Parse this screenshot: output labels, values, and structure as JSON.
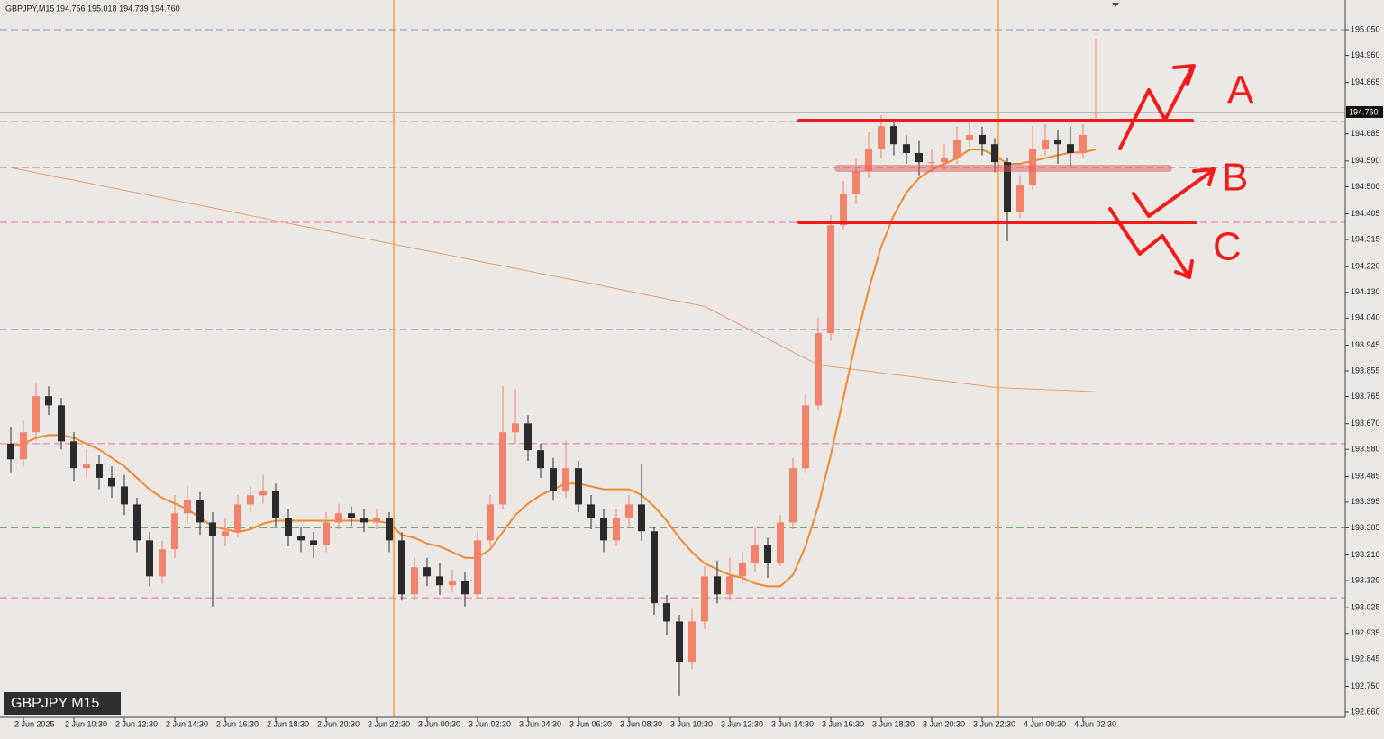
{
  "chart_data": {
    "type": "candlestick",
    "title": "GBPJPY,M15",
    "ohlc_text": "194.756 195.018 194.739 194.760",
    "watermark": "GBPJPY M15",
    "annotations": [
      "A",
      "B",
      "C"
    ],
    "up_color": "#f2836b",
    "down_color": "#2b2b2b",
    "categories": [
      null,
      "2 Jun 2025",
      null,
      null,
      null,
      "2 Jun 10:30",
      null,
      null,
      null,
      "2 Jun 12:30",
      null,
      null,
      null,
      "2 Jun 14:30",
      null,
      null,
      null,
      "2 Jun 16:30",
      null,
      null,
      null,
      "2 Jun 18:30",
      null,
      null,
      null,
      "2 Jun 20:30",
      null,
      null,
      null,
      "2 Jun 22:30",
      null,
      null,
      null,
      "3 Jun 00:30",
      null,
      null,
      null,
      "3 Jun 02:30",
      null,
      null,
      null,
      "3 Jun 04:30",
      null,
      null,
      null,
      "3 Jun 06:30",
      null,
      null,
      null,
      "3 Jun 08:30",
      null,
      null,
      null,
      "3 Jun 10:30",
      null,
      null,
      null,
      "3 Jun 12:30",
      null,
      null,
      null,
      "3 Jun 14:30",
      null,
      null,
      null,
      "3 Jun 16:30",
      null,
      null,
      null,
      "3 Jun 18:30",
      null,
      null,
      null,
      "3 Jun 20:30",
      null,
      null,
      null,
      "3 Jun 22:30",
      null,
      null,
      null,
      "4 Jun 00:30",
      null,
      null,
      null,
      "4 Jun 02:30",
      null
    ],
    "open": [
      193.6,
      193.545,
      193.64,
      193.766,
      193.734,
      193.608,
      193.514,
      193.53,
      193.48,
      193.45,
      193.387,
      193.261,
      193.135,
      193.23,
      193.356,
      193.403,
      193.324,
      193.277,
      193.293,
      193.387,
      193.419,
      193.435,
      193.34,
      193.277,
      193.261,
      193.245,
      193.324,
      193.356,
      193.34,
      193.324,
      193.34,
      193.261,
      193.072,
      193.167,
      193.135,
      193.104,
      193.119,
      193.072,
      193.261,
      193.387,
      193.64,
      193.671,
      193.577,
      193.514,
      193.435,
      193.514,
      193.387,
      193.34,
      193.261,
      193.34,
      193.387,
      193.293,
      193.041,
      192.977,
      192.835,
      192.977,
      193.135,
      193.072,
      193.135,
      193.183,
      193.245,
      193.183,
      193.324,
      193.514,
      193.734,
      193.987,
      194.365,
      194.476,
      194.555,
      194.633,
      194.712,
      194.649,
      194.618,
      194.586,
      194.586,
      194.602,
      194.665,
      194.681,
      194.649,
      194.586,
      194.413,
      194.507,
      194.633,
      194.665,
      194.649,
      194.618,
      194.756
    ],
    "high": [
      193.66,
      193.68,
      193.81,
      193.8,
      193.76,
      193.64,
      193.58,
      193.56,
      193.52,
      193.49,
      193.41,
      193.29,
      193.26,
      193.42,
      193.45,
      193.43,
      193.36,
      193.34,
      193.42,
      193.45,
      193.49,
      193.46,
      193.37,
      193.31,
      193.29,
      193.36,
      193.39,
      193.38,
      193.37,
      193.37,
      193.36,
      193.29,
      193.2,
      193.2,
      193.18,
      193.16,
      193.15,
      193.29,
      193.42,
      193.8,
      193.79,
      193.7,
      193.6,
      193.55,
      193.61,
      193.54,
      193.42,
      193.37,
      193.37,
      193.42,
      193.53,
      193.31,
      193.07,
      193.0,
      193.02,
      193.17,
      193.19,
      193.2,
      193.22,
      193.31,
      193.27,
      193.35,
      193.55,
      193.77,
      194.04,
      194.4,
      194.52,
      194.6,
      194.69,
      194.75,
      194.73,
      194.68,
      194.66,
      194.63,
      194.65,
      194.71,
      194.73,
      194.71,
      194.67,
      194.6,
      194.54,
      194.71,
      194.72,
      194.7,
      194.71,
      194.72,
      195.018
    ],
    "low": [
      193.5,
      193.52,
      193.61,
      193.7,
      193.58,
      193.47,
      193.48,
      193.44,
      193.41,
      193.35,
      193.22,
      193.1,
      193.11,
      193.2,
      193.32,
      193.28,
      193.03,
      193.24,
      193.27,
      193.36,
      193.39,
      193.31,
      193.24,
      193.22,
      193.2,
      193.22,
      193.3,
      193.31,
      193.29,
      193.3,
      193.22,
      193.05,
      193.05,
      193.1,
      193.07,
      193.08,
      193.03,
      193.06,
      193.24,
      193.37,
      193.6,
      193.54,
      193.48,
      193.4,
      193.41,
      193.36,
      193.3,
      193.22,
      193.24,
      193.31,
      193.26,
      193.0,
      192.93,
      192.717,
      192.81,
      192.95,
      193.04,
      193.05,
      193.11,
      193.15,
      193.13,
      193.17,
      193.3,
      193.5,
      193.72,
      193.96,
      194.35,
      194.44,
      194.53,
      194.6,
      194.61,
      194.58,
      194.54,
      194.55,
      194.56,
      194.58,
      194.64,
      194.61,
      194.55,
      194.31,
      194.39,
      194.49,
      194.61,
      194.58,
      194.57,
      194.6,
      194.739
    ],
    "close": [
      193.545,
      193.64,
      193.766,
      193.734,
      193.608,
      193.514,
      193.53,
      193.48,
      193.45,
      193.387,
      193.261,
      193.135,
      193.23,
      193.356,
      193.403,
      193.324,
      193.277,
      193.293,
      193.387,
      193.419,
      193.435,
      193.34,
      193.277,
      193.261,
      193.245,
      193.324,
      193.356,
      193.34,
      193.324,
      193.34,
      193.261,
      193.072,
      193.167,
      193.135,
      193.104,
      193.119,
      193.072,
      193.261,
      193.387,
      193.64,
      193.671,
      193.577,
      193.514,
      193.435,
      193.514,
      193.387,
      193.34,
      193.261,
      193.34,
      193.387,
      193.293,
      193.041,
      192.977,
      192.835,
      192.977,
      193.135,
      193.072,
      193.135,
      193.183,
      193.245,
      193.183,
      193.324,
      193.514,
      193.734,
      193.987,
      194.365,
      194.476,
      194.555,
      194.633,
      194.712,
      194.649,
      194.618,
      194.586,
      194.586,
      194.602,
      194.665,
      194.681,
      194.649,
      194.586,
      194.413,
      194.507,
      194.633,
      194.665,
      194.649,
      194.618,
      194.681,
      194.76
    ],
    "indicators": [
      {
        "color": "#e8a070",
        "width": 1,
        "values": [
          194.567,
          194.558,
          194.549,
          194.54,
          194.531,
          194.523,
          194.514,
          194.505,
          194.496,
          194.487,
          194.479,
          194.47,
          194.461,
          194.452,
          194.443,
          194.435,
          194.426,
          194.417,
          194.408,
          194.399,
          194.39,
          194.381,
          194.372,
          194.363,
          194.355,
          194.346,
          194.337,
          194.328,
          194.319,
          194.311,
          194.302,
          194.293,
          194.284,
          194.275,
          194.267,
          194.258,
          194.249,
          194.24,
          194.231,
          194.223,
          194.214,
          194.205,
          194.196,
          194.187,
          194.179,
          194.17,
          194.161,
          194.152,
          194.143,
          194.134,
          194.125,
          194.116,
          194.107,
          194.098,
          194.09,
          194.081,
          194.058,
          194.035,
          194.012,
          193.99,
          193.967,
          193.944,
          193.921,
          193.899,
          193.876,
          193.87,
          193.865,
          193.859,
          193.854,
          193.848,
          193.842,
          193.837,
          193.831,
          193.825,
          193.82,
          193.814,
          193.808,
          193.803,
          193.797,
          193.795,
          193.793,
          193.791,
          193.789,
          193.788,
          193.786,
          193.784,
          193.782
        ]
      },
      {
        "color": "#f08a30",
        "width": 2,
        "values": [
          193.59,
          193.6,
          193.62,
          193.63,
          193.63,
          193.62,
          193.6,
          193.58,
          193.55,
          193.52,
          193.48,
          193.44,
          193.41,
          193.39,
          193.37,
          193.34,
          193.31,
          193.3,
          193.29,
          193.3,
          193.32,
          193.33,
          193.33,
          193.33,
          193.33,
          193.33,
          193.33,
          193.33,
          193.33,
          193.33,
          193.32,
          193.28,
          193.27,
          193.25,
          193.24,
          193.22,
          193.2,
          193.2,
          193.23,
          193.29,
          193.35,
          193.39,
          193.42,
          193.44,
          193.46,
          193.46,
          193.45,
          193.44,
          193.44,
          193.44,
          193.42,
          193.38,
          193.33,
          193.27,
          193.22,
          193.18,
          193.16,
          193.14,
          193.13,
          193.11,
          193.1,
          193.1,
          193.14,
          193.24,
          193.38,
          193.56,
          193.76,
          193.96,
          194.14,
          194.29,
          194.4,
          194.48,
          194.53,
          194.56,
          194.58,
          194.6,
          194.63,
          194.63,
          194.61,
          194.58,
          194.58,
          194.59,
          194.6,
          194.61,
          194.62,
          194.62,
          194.63
        ]
      }
    ],
    "levels": [
      {
        "value": 195.05,
        "color": "#7d97c4"
      },
      {
        "value": 194.728,
        "color": "#e07aa0"
      },
      {
        "value": 194.567,
        "color": "#9a9a9a"
      },
      {
        "value": 194.375,
        "color": "#e07aa0"
      },
      {
        "value": 194.0,
        "color": "#6d8cc0"
      },
      {
        "value": 193.6,
        "color": "#e07aa0"
      },
      {
        "value": 193.305,
        "color": "#6c9c6c"
      },
      {
        "value": 193.06,
        "color": "#e07aa0"
      }
    ],
    "current_price": {
      "value": 194.76,
      "label": "194.760"
    },
    "ylim": [
      192.641,
      195.154
    ],
    "yticks": [
      {
        "value": 195.05,
        "label": "195.050"
      },
      {
        "value": 194.96,
        "label": "194.960"
      },
      194.865,
      194.685,
      {
        "value": 194.59,
        "label": "194.590"
      },
      {
        "value": 194.5,
        "label": "194.500"
      },
      194.405,
      194.315,
      {
        "value": 194.22,
        "label": "194.220"
      },
      {
        "value": 194.13,
        "label": "194.130"
      },
      {
        "value": 194.04,
        "label": "194.040"
      },
      193.945,
      193.855,
      193.765,
      {
        "value": 193.67,
        "label": "193.670"
      },
      {
        "value": 193.58,
        "label": "193.580"
      },
      193.485,
      193.395,
      193.305,
      {
        "value": 193.21,
        "label": "193.210"
      },
      {
        "value": 193.12,
        "label": "193.120"
      },
      193.025,
      192.935,
      192.845,
      {
        "value": 192.75,
        "label": "192.750"
      },
      {
        "value": 192.66,
        "label": "192.660"
      }
    ]
  }
}
